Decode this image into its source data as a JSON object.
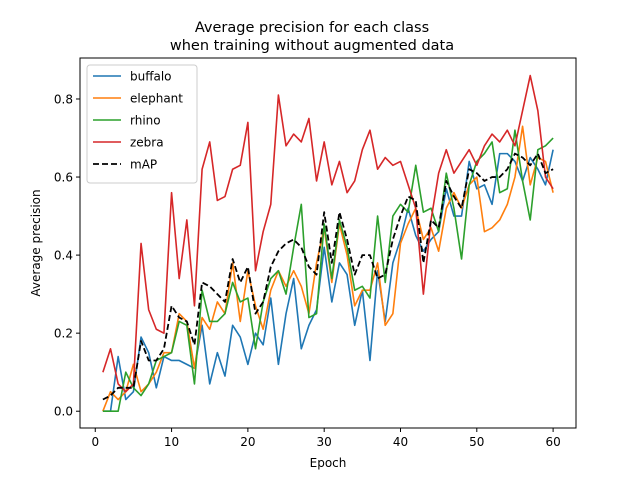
{
  "chart_data": {
    "type": "line",
    "title": "Average precision for each class\nwhen training without augmented data",
    "xlabel": "Epoch",
    "ylabel": "Average precision",
    "xlim": [
      -2,
      63
    ],
    "ylim": [
      -0.043,
      0.905
    ],
    "xticks": [
      0,
      10,
      20,
      30,
      40,
      50,
      60
    ],
    "yticks": [
      0.0,
      0.2,
      0.4,
      0.6,
      0.8
    ],
    "ytick_labels": [
      "0.0",
      "0.2",
      "0.4",
      "0.6",
      "0.8"
    ],
    "legend_position": "upper-left",
    "grid": false,
    "x": [
      1,
      2,
      3,
      4,
      5,
      6,
      7,
      8,
      9,
      10,
      11,
      12,
      13,
      14,
      15,
      16,
      17,
      18,
      19,
      20,
      21,
      22,
      23,
      24,
      25,
      26,
      27,
      28,
      29,
      30,
      31,
      32,
      33,
      34,
      35,
      36,
      37,
      38,
      39,
      40,
      41,
      42,
      43,
      44,
      45,
      46,
      47,
      48,
      49,
      50,
      51,
      52,
      53,
      54,
      55,
      56,
      57,
      58,
      59,
      60
    ],
    "series": [
      {
        "name": "buffalo",
        "color": "#1f77b4",
        "dash": false,
        "values": [
          0.0,
          0.0,
          0.14,
          0.03,
          0.05,
          0.19,
          0.15,
          0.06,
          0.14,
          0.13,
          0.13,
          0.12,
          0.11,
          0.22,
          0.07,
          0.15,
          0.09,
          0.22,
          0.19,
          0.12,
          0.2,
          0.17,
          0.29,
          0.12,
          0.25,
          0.34,
          0.16,
          0.22,
          0.26,
          0.42,
          0.28,
          0.38,
          0.35,
          0.22,
          0.31,
          0.13,
          0.36,
          0.23,
          0.38,
          0.44,
          0.52,
          0.45,
          0.41,
          0.44,
          0.46,
          0.57,
          0.5,
          0.5,
          0.64,
          0.57,
          0.58,
          0.53,
          0.66,
          0.66,
          0.64,
          0.59,
          0.65,
          0.62,
          0.58,
          0.67
        ]
      },
      {
        "name": "elephant",
        "color": "#ff7f0e",
        "dash": false,
        "values": [
          0.0,
          0.05,
          0.03,
          0.05,
          0.12,
          0.05,
          0.07,
          0.1,
          0.15,
          0.15,
          0.25,
          0.23,
          0.11,
          0.24,
          0.21,
          0.28,
          0.25,
          0.38,
          0.23,
          0.36,
          0.27,
          0.21,
          0.31,
          0.36,
          0.32,
          0.36,
          0.32,
          0.25,
          0.38,
          0.47,
          0.33,
          0.48,
          0.4,
          0.27,
          0.31,
          0.31,
          0.38,
          0.22,
          0.25,
          0.43,
          0.48,
          0.52,
          0.44,
          0.47,
          0.41,
          0.52,
          0.56,
          0.52,
          0.58,
          0.6,
          0.46,
          0.47,
          0.49,
          0.53,
          0.6,
          0.73,
          0.58,
          0.65,
          0.64,
          0.56
        ]
      },
      {
        "name": "rhino",
        "color": "#2ca02c",
        "dash": false,
        "values": [
          0.0,
          0.0,
          0.0,
          0.1,
          0.06,
          0.04,
          0.07,
          0.13,
          0.14,
          0.15,
          0.23,
          0.22,
          0.07,
          0.31,
          0.23,
          0.23,
          0.25,
          0.33,
          0.28,
          0.29,
          0.16,
          0.28,
          0.34,
          0.36,
          0.3,
          0.42,
          0.53,
          0.24,
          0.25,
          0.48,
          0.34,
          0.49,
          0.42,
          0.31,
          0.32,
          0.29,
          0.5,
          0.33,
          0.5,
          0.53,
          0.51,
          0.63,
          0.51,
          0.52,
          0.46,
          0.61,
          0.52,
          0.39,
          0.58,
          0.64,
          0.66,
          0.69,
          0.56,
          0.57,
          0.72,
          0.59,
          0.49,
          0.67,
          0.68,
          0.7
        ]
      },
      {
        "name": "zebra",
        "color": "#d62728",
        "dash": false,
        "values": [
          0.1,
          0.16,
          0.07,
          0.05,
          0.07,
          0.43,
          0.26,
          0.21,
          0.2,
          0.56,
          0.34,
          0.49,
          0.27,
          0.62,
          0.69,
          0.54,
          0.55,
          0.62,
          0.63,
          0.74,
          0.36,
          0.46,
          0.53,
          0.81,
          0.68,
          0.71,
          0.69,
          0.75,
          0.59,
          0.69,
          0.58,
          0.64,
          0.56,
          0.59,
          0.67,
          0.72,
          0.62,
          0.65,
          0.63,
          0.64,
          0.58,
          0.52,
          0.3,
          0.49,
          0.61,
          0.67,
          0.61,
          0.64,
          0.67,
          0.63,
          0.68,
          0.71,
          0.69,
          0.72,
          0.68,
          0.77,
          0.86,
          0.77,
          0.6,
          0.57
        ]
      },
      {
        "name": "mAP",
        "color": "#000000",
        "dash": true,
        "values": [
          0.03,
          0.04,
          0.06,
          0.06,
          0.06,
          0.18,
          0.13,
          0.13,
          0.16,
          0.27,
          0.24,
          0.23,
          0.17,
          0.33,
          0.32,
          0.3,
          0.28,
          0.39,
          0.33,
          0.37,
          0.25,
          0.28,
          0.37,
          0.41,
          0.43,
          0.44,
          0.42,
          0.37,
          0.35,
          0.51,
          0.38,
          0.51,
          0.44,
          0.35,
          0.4,
          0.4,
          0.34,
          0.35,
          0.44,
          0.5,
          0.55,
          0.54,
          0.38,
          0.49,
          0.47,
          0.59,
          0.55,
          0.52,
          0.62,
          0.61,
          0.59,
          0.6,
          0.6,
          0.62,
          0.66,
          0.65,
          0.63,
          0.66,
          0.61,
          0.62
        ]
      }
    ]
  }
}
